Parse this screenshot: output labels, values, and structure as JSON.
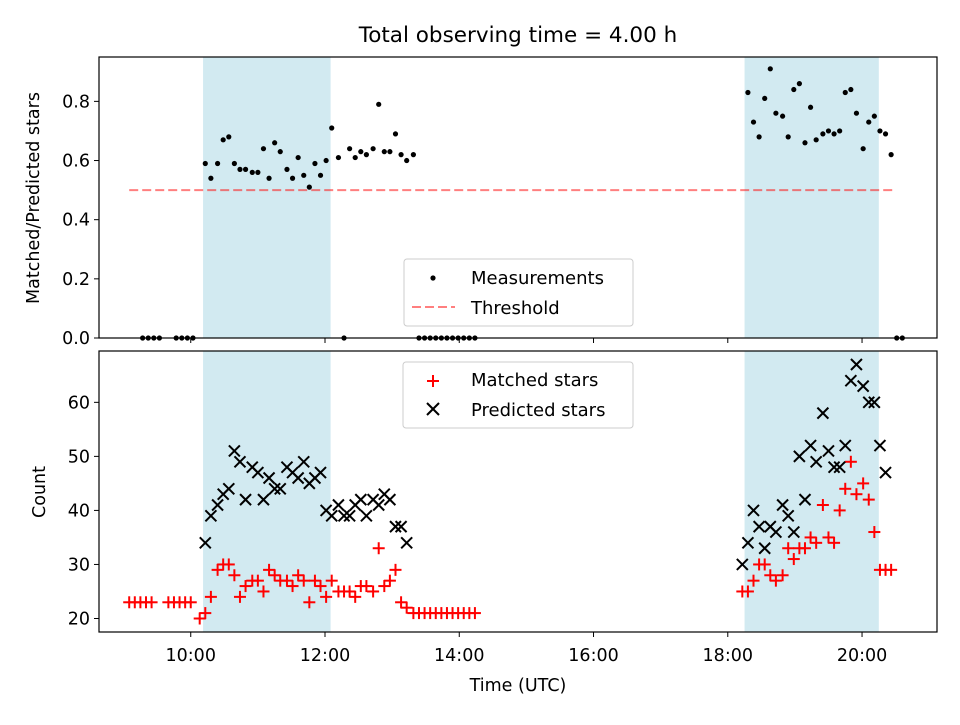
{
  "chart_data": [
    {
      "type": "scatter",
      "title": "Total observing time = 4.00 h",
      "ylabel": "Matched/Predicted stars",
      "ylim": [
        0,
        0.95
      ],
      "yticks": [
        "0.0",
        "0.2",
        "0.4",
        "0.6",
        "0.8"
      ],
      "ytick_values": [
        0,
        0.2,
        0.4,
        0.6,
        0.8
      ],
      "xlim": [
        "08:38",
        "21:07"
      ],
      "shaded_intervals": [
        [
          "10:11",
          "12:05"
        ],
        [
          "18:15",
          "20:15"
        ]
      ],
      "shade_color": "#add8e6",
      "threshold": {
        "name": "Threshold",
        "value": 0.5,
        "x": [
          "09:05",
          "20:30"
        ],
        "color": "#ff0000"
      },
      "legend": {
        "placement": "lower-center",
        "entries": [
          "Measurements",
          "Threshold"
        ]
      },
      "series": [
        {
          "name": "Measurements",
          "color": "#000000",
          "points": [
            [
              "09:17",
              0
            ],
            [
              "09:22",
              0
            ],
            [
              "09:27",
              0
            ],
            [
              "09:32",
              0
            ],
            [
              "09:47",
              0
            ],
            [
              "09:52",
              0
            ],
            [
              "09:57",
              0
            ],
            [
              "10:02",
              0
            ],
            [
              "10:13",
              0.59
            ],
            [
              "10:18",
              0.54
            ],
            [
              "10:24",
              0.59
            ],
            [
              "10:29",
              0.67
            ],
            [
              "10:34",
              0.68
            ],
            [
              "10:39",
              0.59
            ],
            [
              "10:44",
              0.57
            ],
            [
              "10:49",
              0.57
            ],
            [
              "10:55",
              0.56
            ],
            [
              "11:00",
              0.56
            ],
            [
              "11:05",
              0.64
            ],
            [
              "11:10",
              0.54
            ],
            [
              "11:15",
              0.66
            ],
            [
              "11:20",
              0.63
            ],
            [
              "11:26",
              0.57
            ],
            [
              "11:31",
              0.54
            ],
            [
              "11:36",
              0.61
            ],
            [
              "11:41",
              0.55
            ],
            [
              "11:46",
              0.51
            ],
            [
              "11:51",
              0.59
            ],
            [
              "11:56",
              0.55
            ],
            [
              "12:01",
              0.6
            ],
            [
              "12:06",
              0.71
            ],
            [
              "12:12",
              0.61
            ],
            [
              "12:17",
              0
            ],
            [
              "12:22",
              0.64
            ],
            [
              "12:27",
              0.61
            ],
            [
              "12:32",
              0.63
            ],
            [
              "12:37",
              0.62
            ],
            [
              "12:43",
              0.64
            ],
            [
              "12:48",
              0.79
            ],
            [
              "12:53",
              0.63
            ],
            [
              "12:58",
              0.63
            ],
            [
              "13:03",
              0.69
            ],
            [
              "13:08",
              0.62
            ],
            [
              "13:13",
              0.6
            ],
            [
              "13:19",
              0.62
            ],
            [
              "13:24",
              0
            ],
            [
              "13:29",
              0
            ],
            [
              "13:34",
              0
            ],
            [
              "13:39",
              0
            ],
            [
              "13:44",
              0
            ],
            [
              "13:49",
              0
            ],
            [
              "13:54",
              0
            ],
            [
              "13:59",
              0
            ],
            [
              "14:04",
              0
            ],
            [
              "14:09",
              0
            ],
            [
              "14:14",
              0
            ],
            [
              "18:18",
              0.83
            ],
            [
              "18:23",
              0.73
            ],
            [
              "18:28",
              0.68
            ],
            [
              "18:33",
              0.81
            ],
            [
              "18:38",
              0.91
            ],
            [
              "18:43",
              0.76
            ],
            [
              "18:49",
              0.75
            ],
            [
              "18:54",
              0.68
            ],
            [
              "18:59",
              0.84
            ],
            [
              "19:04",
              0.86
            ],
            [
              "19:09",
              0.66
            ],
            [
              "19:14",
              0.78
            ],
            [
              "19:19",
              0.67
            ],
            [
              "19:25",
              0.69
            ],
            [
              "19:30",
              0.7
            ],
            [
              "19:35",
              0.69
            ],
            [
              "19:40",
              0.7
            ],
            [
              "19:45",
              0.83
            ],
            [
              "19:50",
              0.84
            ],
            [
              "19:55",
              0.76
            ],
            [
              "20:01",
              0.64
            ],
            [
              "20:06",
              0.73
            ],
            [
              "20:11",
              0.75
            ],
            [
              "20:16",
              0.7
            ],
            [
              "20:21",
              0.69
            ],
            [
              "20:26",
              0.62
            ],
            [
              "20:31",
              0
            ],
            [
              "20:36",
              0
            ]
          ]
        }
      ]
    },
    {
      "type": "scatter",
      "xlabel": "Time (UTC)",
      "ylabel": "Count",
      "ylim": [
        17.5,
        69.5
      ],
      "yticks": [
        "20",
        "30",
        "40",
        "50",
        "60"
      ],
      "ytick_values": [
        20,
        30,
        40,
        50,
        60
      ],
      "xlim": [
        "08:38",
        "21:07"
      ],
      "xticks": [
        "10:00",
        "12:00",
        "14:00",
        "16:00",
        "18:00",
        "20:00"
      ],
      "shaded_intervals": [
        [
          "10:11",
          "12:05"
        ],
        [
          "18:15",
          "20:15"
        ]
      ],
      "shade_color": "#add8e6",
      "legend": {
        "placement": "upper-center",
        "entries": [
          "Matched stars",
          "Predicted stars"
        ]
      },
      "series": [
        {
          "name": "Matched stars",
          "marker": "+",
          "color": "#ff0000",
          "points": [
            [
              "09:05",
              23
            ],
            [
              "09:10",
              23
            ],
            [
              "09:15",
              23
            ],
            [
              "09:20",
              23
            ],
            [
              "09:25",
              23
            ],
            [
              "09:40",
              23
            ],
            [
              "09:45",
              23
            ],
            [
              "09:50",
              23
            ],
            [
              "09:55",
              23
            ],
            [
              "10:00",
              23
            ],
            [
              "10:08",
              20
            ],
            [
              "10:13",
              21
            ],
            [
              "10:18",
              24
            ],
            [
              "10:24",
              29
            ],
            [
              "10:29",
              30
            ],
            [
              "10:34",
              30
            ],
            [
              "10:39",
              28
            ],
            [
              "10:44",
              24
            ],
            [
              "10:49",
              26
            ],
            [
              "10:55",
              27
            ],
            [
              "11:00",
              27
            ],
            [
              "11:05",
              25
            ],
            [
              "11:10",
              29
            ],
            [
              "11:15",
              28
            ],
            [
              "11:20",
              27
            ],
            [
              "11:26",
              27
            ],
            [
              "11:31",
              26
            ],
            [
              "11:36",
              28
            ],
            [
              "11:41",
              27
            ],
            [
              "11:46",
              23
            ],
            [
              "11:51",
              27
            ],
            [
              "11:56",
              26
            ],
            [
              "12:01",
              24
            ],
            [
              "12:06",
              27
            ],
            [
              "12:12",
              25
            ],
            [
              "12:17",
              25
            ],
            [
              "12:22",
              25
            ],
            [
              "12:27",
              24
            ],
            [
              "12:32",
              26
            ],
            [
              "12:37",
              26
            ],
            [
              "12:43",
              25
            ],
            [
              "12:48",
              33
            ],
            [
              "12:53",
              26
            ],
            [
              "12:58",
              27
            ],
            [
              "13:03",
              29
            ],
            [
              "13:08",
              23
            ],
            [
              "13:13",
              22
            ],
            [
              "13:19",
              21
            ],
            [
              "13:24",
              21
            ],
            [
              "13:29",
              21
            ],
            [
              "13:34",
              21
            ],
            [
              "13:39",
              21
            ],
            [
              "13:44",
              21
            ],
            [
              "13:49",
              21
            ],
            [
              "13:54",
              21
            ],
            [
              "13:59",
              21
            ],
            [
              "14:04",
              21
            ],
            [
              "14:09",
              21
            ],
            [
              "14:14",
              21
            ],
            [
              "18:13",
              25
            ],
            [
              "18:18",
              25
            ],
            [
              "18:23",
              27
            ],
            [
              "18:28",
              30
            ],
            [
              "18:33",
              30
            ],
            [
              "18:38",
              28
            ],
            [
              "18:43",
              27
            ],
            [
              "18:49",
              28
            ],
            [
              "18:54",
              33
            ],
            [
              "18:59",
              31
            ],
            [
              "19:04",
              33
            ],
            [
              "19:09",
              33
            ],
            [
              "19:14",
              35
            ],
            [
              "19:19",
              34
            ],
            [
              "19:25",
              41
            ],
            [
              "19:30",
              35
            ],
            [
              "19:35",
              34
            ],
            [
              "19:40",
              40
            ],
            [
              "19:45",
              44
            ],
            [
              "19:50",
              49
            ],
            [
              "19:55",
              43
            ],
            [
              "20:01",
              45
            ],
            [
              "20:06",
              42
            ],
            [
              "20:11",
              36
            ],
            [
              "20:16",
              29
            ],
            [
              "20:21",
              29
            ],
            [
              "20:26",
              29
            ]
          ]
        },
        {
          "name": "Predicted stars",
          "marker": "x",
          "color": "#000000",
          "points": [
            [
              "10:13",
              34
            ],
            [
              "10:18",
              39
            ],
            [
              "10:24",
              41
            ],
            [
              "10:29",
              43
            ],
            [
              "10:34",
              44
            ],
            [
              "10:39",
              51
            ],
            [
              "10:44",
              49
            ],
            [
              "10:49",
              42
            ],
            [
              "10:55",
              48
            ],
            [
              "11:00",
              47
            ],
            [
              "11:05",
              42
            ],
            [
              "11:10",
              46
            ],
            [
              "11:15",
              44
            ],
            [
              "11:20",
              44
            ],
            [
              "11:26",
              48
            ],
            [
              "11:31",
              47
            ],
            [
              "11:36",
              46
            ],
            [
              "11:41",
              49
            ],
            [
              "11:46",
              45
            ],
            [
              "11:51",
              46
            ],
            [
              "11:56",
              47
            ],
            [
              "12:01",
              40
            ],
            [
              "12:06",
              39
            ],
            [
              "12:12",
              41
            ],
            [
              "12:17",
              39
            ],
            [
              "12:22",
              39
            ],
            [
              "12:27",
              41
            ],
            [
              "12:32",
              42
            ],
            [
              "12:37",
              39
            ],
            [
              "12:43",
              42
            ],
            [
              "12:48",
              41
            ],
            [
              "12:53",
              43
            ],
            [
              "12:58",
              42
            ],
            [
              "13:03",
              37
            ],
            [
              "13:08",
              37
            ],
            [
              "13:13",
              34
            ],
            [
              "18:13",
              30
            ],
            [
              "18:18",
              34
            ],
            [
              "18:23",
              40
            ],
            [
              "18:28",
              37
            ],
            [
              "18:33",
              33
            ],
            [
              "18:38",
              37
            ],
            [
              "18:43",
              36
            ],
            [
              "18:49",
              41
            ],
            [
              "18:54",
              39
            ],
            [
              "18:59",
              36
            ],
            [
              "19:04",
              50
            ],
            [
              "19:09",
              42
            ],
            [
              "19:14",
              52
            ],
            [
              "19:19",
              49
            ],
            [
              "19:25",
              58
            ],
            [
              "19:30",
              51
            ],
            [
              "19:35",
              48
            ],
            [
              "19:40",
              48
            ],
            [
              "19:45",
              52
            ],
            [
              "19:50",
              64
            ],
            [
              "19:55",
              67
            ],
            [
              "20:01",
              63
            ],
            [
              "20:06",
              60
            ],
            [
              "20:11",
              60
            ],
            [
              "20:16",
              52
            ],
            [
              "20:21",
              47
            ]
          ]
        }
      ]
    }
  ]
}
